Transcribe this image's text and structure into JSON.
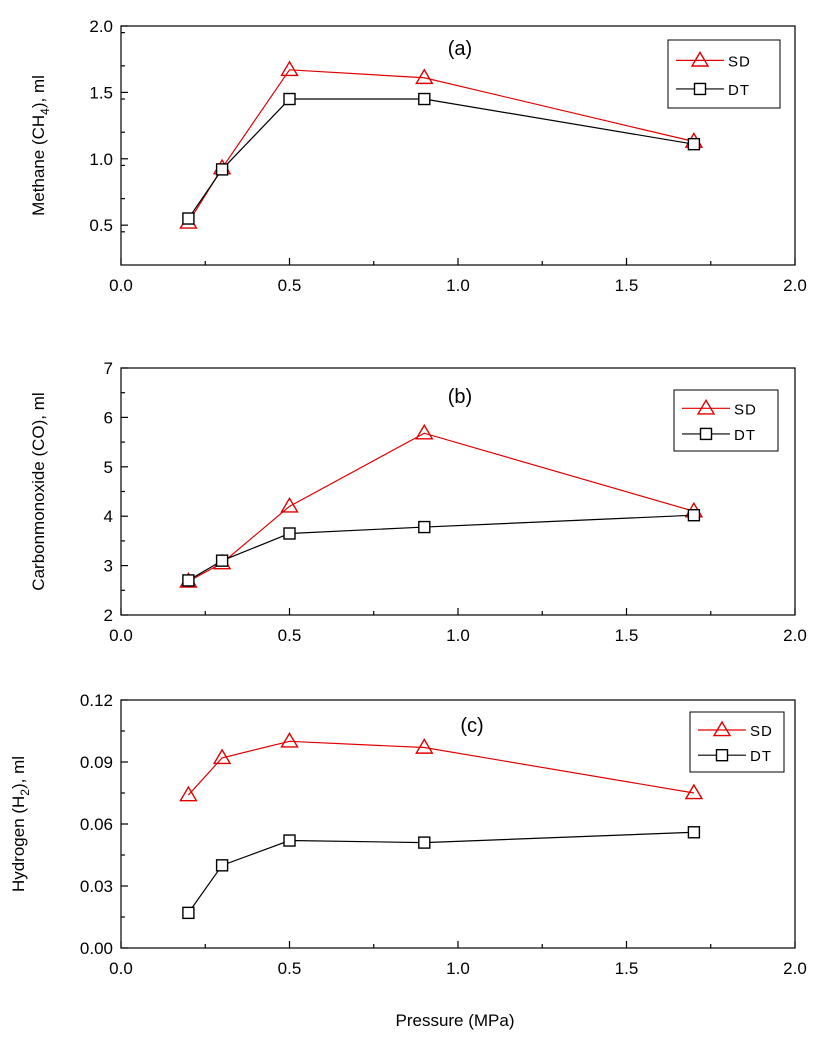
{
  "figure": {
    "xlabel": "Pressure (MPa)"
  },
  "chart_data": [
    {
      "type": "line",
      "panel_label": "(a)",
      "ylabel_main": "Methane (CH",
      "ylabel_sub": "4",
      "ylabel_tail": "), ml",
      "xlabel": "",
      "xlim": [
        0.0,
        2.0
      ],
      "ylim": [
        0.2,
        2.0
      ],
      "xticks": [
        "0.0",
        "0.5",
        "1.0",
        "1.5",
        "2.0"
      ],
      "xtick_values": [
        0.0,
        0.5,
        1.0,
        1.5,
        2.0
      ],
      "yticks": [
        "0.5",
        "1.0",
        "1.5",
        "2.0"
      ],
      "ytick_values": [
        0.5,
        1.0,
        1.5,
        2.0
      ],
      "y_minor_step": 0.25,
      "legend_position": "top-right",
      "x": [
        0.2,
        0.3,
        0.5,
        0.9,
        1.7
      ],
      "series": [
        {
          "name": "SD",
          "color": "#e00000",
          "marker": "triangle",
          "values": [
            0.52,
            0.93,
            1.67,
            1.61,
            1.13
          ]
        },
        {
          "name": "DT",
          "color": "#000000",
          "marker": "square",
          "values": [
            0.55,
            0.92,
            1.45,
            1.45,
            1.11
          ]
        }
      ]
    },
    {
      "type": "line",
      "panel_label": "(b)",
      "ylabel_main": "Carbonmonoxide (CO), ml",
      "ylabel_sub": "",
      "ylabel_tail": "",
      "xlabel": "",
      "xlim": [
        0.0,
        2.0
      ],
      "ylim": [
        2,
        7
      ],
      "xticks": [
        "0.0",
        "0.5",
        "1.0",
        "1.5",
        "2.0"
      ],
      "xtick_values": [
        0.0,
        0.5,
        1.0,
        1.5,
        2.0
      ],
      "yticks": [
        "2",
        "3",
        "4",
        "5",
        "6",
        "7"
      ],
      "ytick_values": [
        2,
        3,
        4,
        5,
        6,
        7
      ],
      "y_minor_step": 0.5,
      "legend_position": "top-right",
      "x": [
        0.2,
        0.3,
        0.5,
        0.9,
        1.7
      ],
      "series": [
        {
          "name": "SD",
          "color": "#e00000",
          "marker": "triangle",
          "values": [
            2.68,
            3.05,
            4.2,
            5.68,
            4.1
          ]
        },
        {
          "name": "DT",
          "color": "#000000",
          "marker": "square",
          "values": [
            2.7,
            3.1,
            3.65,
            3.78,
            4.02
          ]
        }
      ]
    },
    {
      "type": "line",
      "panel_label": "(c)",
      "ylabel_main": "Hydrogen (H",
      "ylabel_sub": "2",
      "ylabel_tail": "), ml",
      "xlabel": "Pressure (MPa)",
      "xlim": [
        0.0,
        2.0
      ],
      "ylim": [
        0.0,
        0.12
      ],
      "xticks": [
        "0.0",
        "0.5",
        "1.0",
        "1.5",
        "2.0"
      ],
      "xtick_values": [
        0.0,
        0.5,
        1.0,
        1.5,
        2.0
      ],
      "yticks": [
        "0.00",
        "0.03",
        "0.06",
        "0.09",
        "0.12"
      ],
      "ytick_values": [
        0.0,
        0.03,
        0.06,
        0.09,
        0.12
      ],
      "y_minor_step": 0.015,
      "legend_position": "top-right",
      "x": [
        0.2,
        0.3,
        0.5,
        0.9,
        1.7
      ],
      "series": [
        {
          "name": "SD",
          "color": "#e00000",
          "marker": "triangle",
          "values": [
            0.074,
            0.092,
            0.1,
            0.097,
            0.075
          ]
        },
        {
          "name": "DT",
          "color": "#000000",
          "marker": "square",
          "values": [
            0.017,
            0.04,
            0.052,
            0.051,
            0.056
          ]
        }
      ]
    }
  ]
}
